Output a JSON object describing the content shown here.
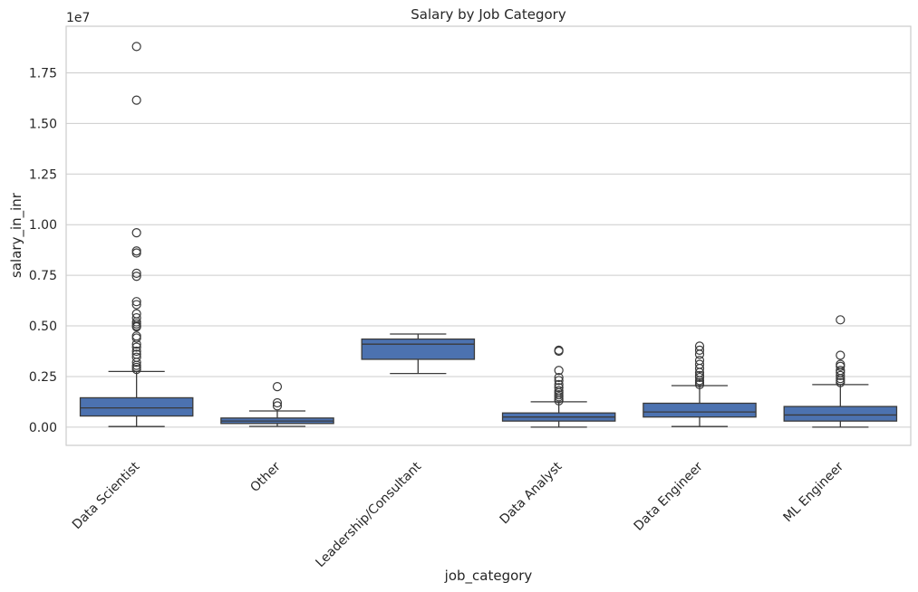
{
  "chart_data": {
    "type": "box",
    "title": "Salary by Job Category",
    "xlabel": "job_category",
    "ylabel": "salary_in_inr",
    "y_offset_label": "1e7",
    "y_scale": 10000000,
    "ylim": [
      -0.09,
      1.98
    ],
    "yticks": [
      0.0,
      0.25,
      0.5,
      0.75,
      1.0,
      1.25,
      1.5,
      1.75
    ],
    "ytick_labels": [
      "0.00",
      "0.25",
      "0.50",
      "0.75",
      "1.00",
      "1.25",
      "1.50",
      "1.75"
    ],
    "grid": true,
    "box_color": "#4c72b0",
    "categories": [
      "Data Scientist",
      "Other",
      "Leadership/Consultant",
      "Data Analyst",
      "Data Engineer",
      "ML Engineer"
    ],
    "boxes": [
      {
        "category": "Data Scientist",
        "whislo": 0.003,
        "q1": 0.055,
        "med": 0.095,
        "q3": 0.145,
        "whishi": 0.275,
        "fliers": [
          1.88,
          1.615,
          0.96,
          0.87,
          0.86,
          0.76,
          0.745,
          0.62,
          0.605,
          0.56,
          0.54,
          0.52,
          0.51,
          0.5,
          0.495,
          0.45,
          0.44,
          0.41,
          0.395,
          0.375,
          0.36,
          0.345,
          0.32,
          0.305,
          0.295,
          0.285
        ]
      },
      {
        "category": "Other",
        "whislo": 0.004,
        "q1": 0.018,
        "med": 0.03,
        "q3": 0.045,
        "whishi": 0.08,
        "fliers": [
          0.2,
          0.12,
          0.105
        ]
      },
      {
        "category": "Leadership/Consultant",
        "whislo": 0.265,
        "q1": 0.335,
        "med": 0.41,
        "q3": 0.435,
        "whishi": 0.46,
        "fliers": []
      },
      {
        "category": "Data Analyst",
        "whislo": 0.0,
        "q1": 0.03,
        "med": 0.05,
        "q3": 0.07,
        "whishi": 0.125,
        "fliers": [
          0.38,
          0.375,
          0.28,
          0.245,
          0.23,
          0.21,
          0.195,
          0.18,
          0.17,
          0.16,
          0.15,
          0.14,
          0.13
        ]
      },
      {
        "category": "Data Engineer",
        "whislo": 0.003,
        "q1": 0.05,
        "med": 0.075,
        "q3": 0.118,
        "whishi": 0.205,
        "fliers": [
          0.4,
          0.38,
          0.36,
          0.33,
          0.31,
          0.29,
          0.27,
          0.255,
          0.245,
          0.23,
          0.22,
          0.21
        ]
      },
      {
        "category": "ML Engineer",
        "whislo": 0.0,
        "q1": 0.03,
        "med": 0.06,
        "q3": 0.102,
        "whishi": 0.21,
        "fliers": [
          0.53,
          0.355,
          0.31,
          0.3,
          0.28,
          0.27,
          0.255,
          0.24,
          0.23,
          0.22
        ]
      }
    ]
  }
}
